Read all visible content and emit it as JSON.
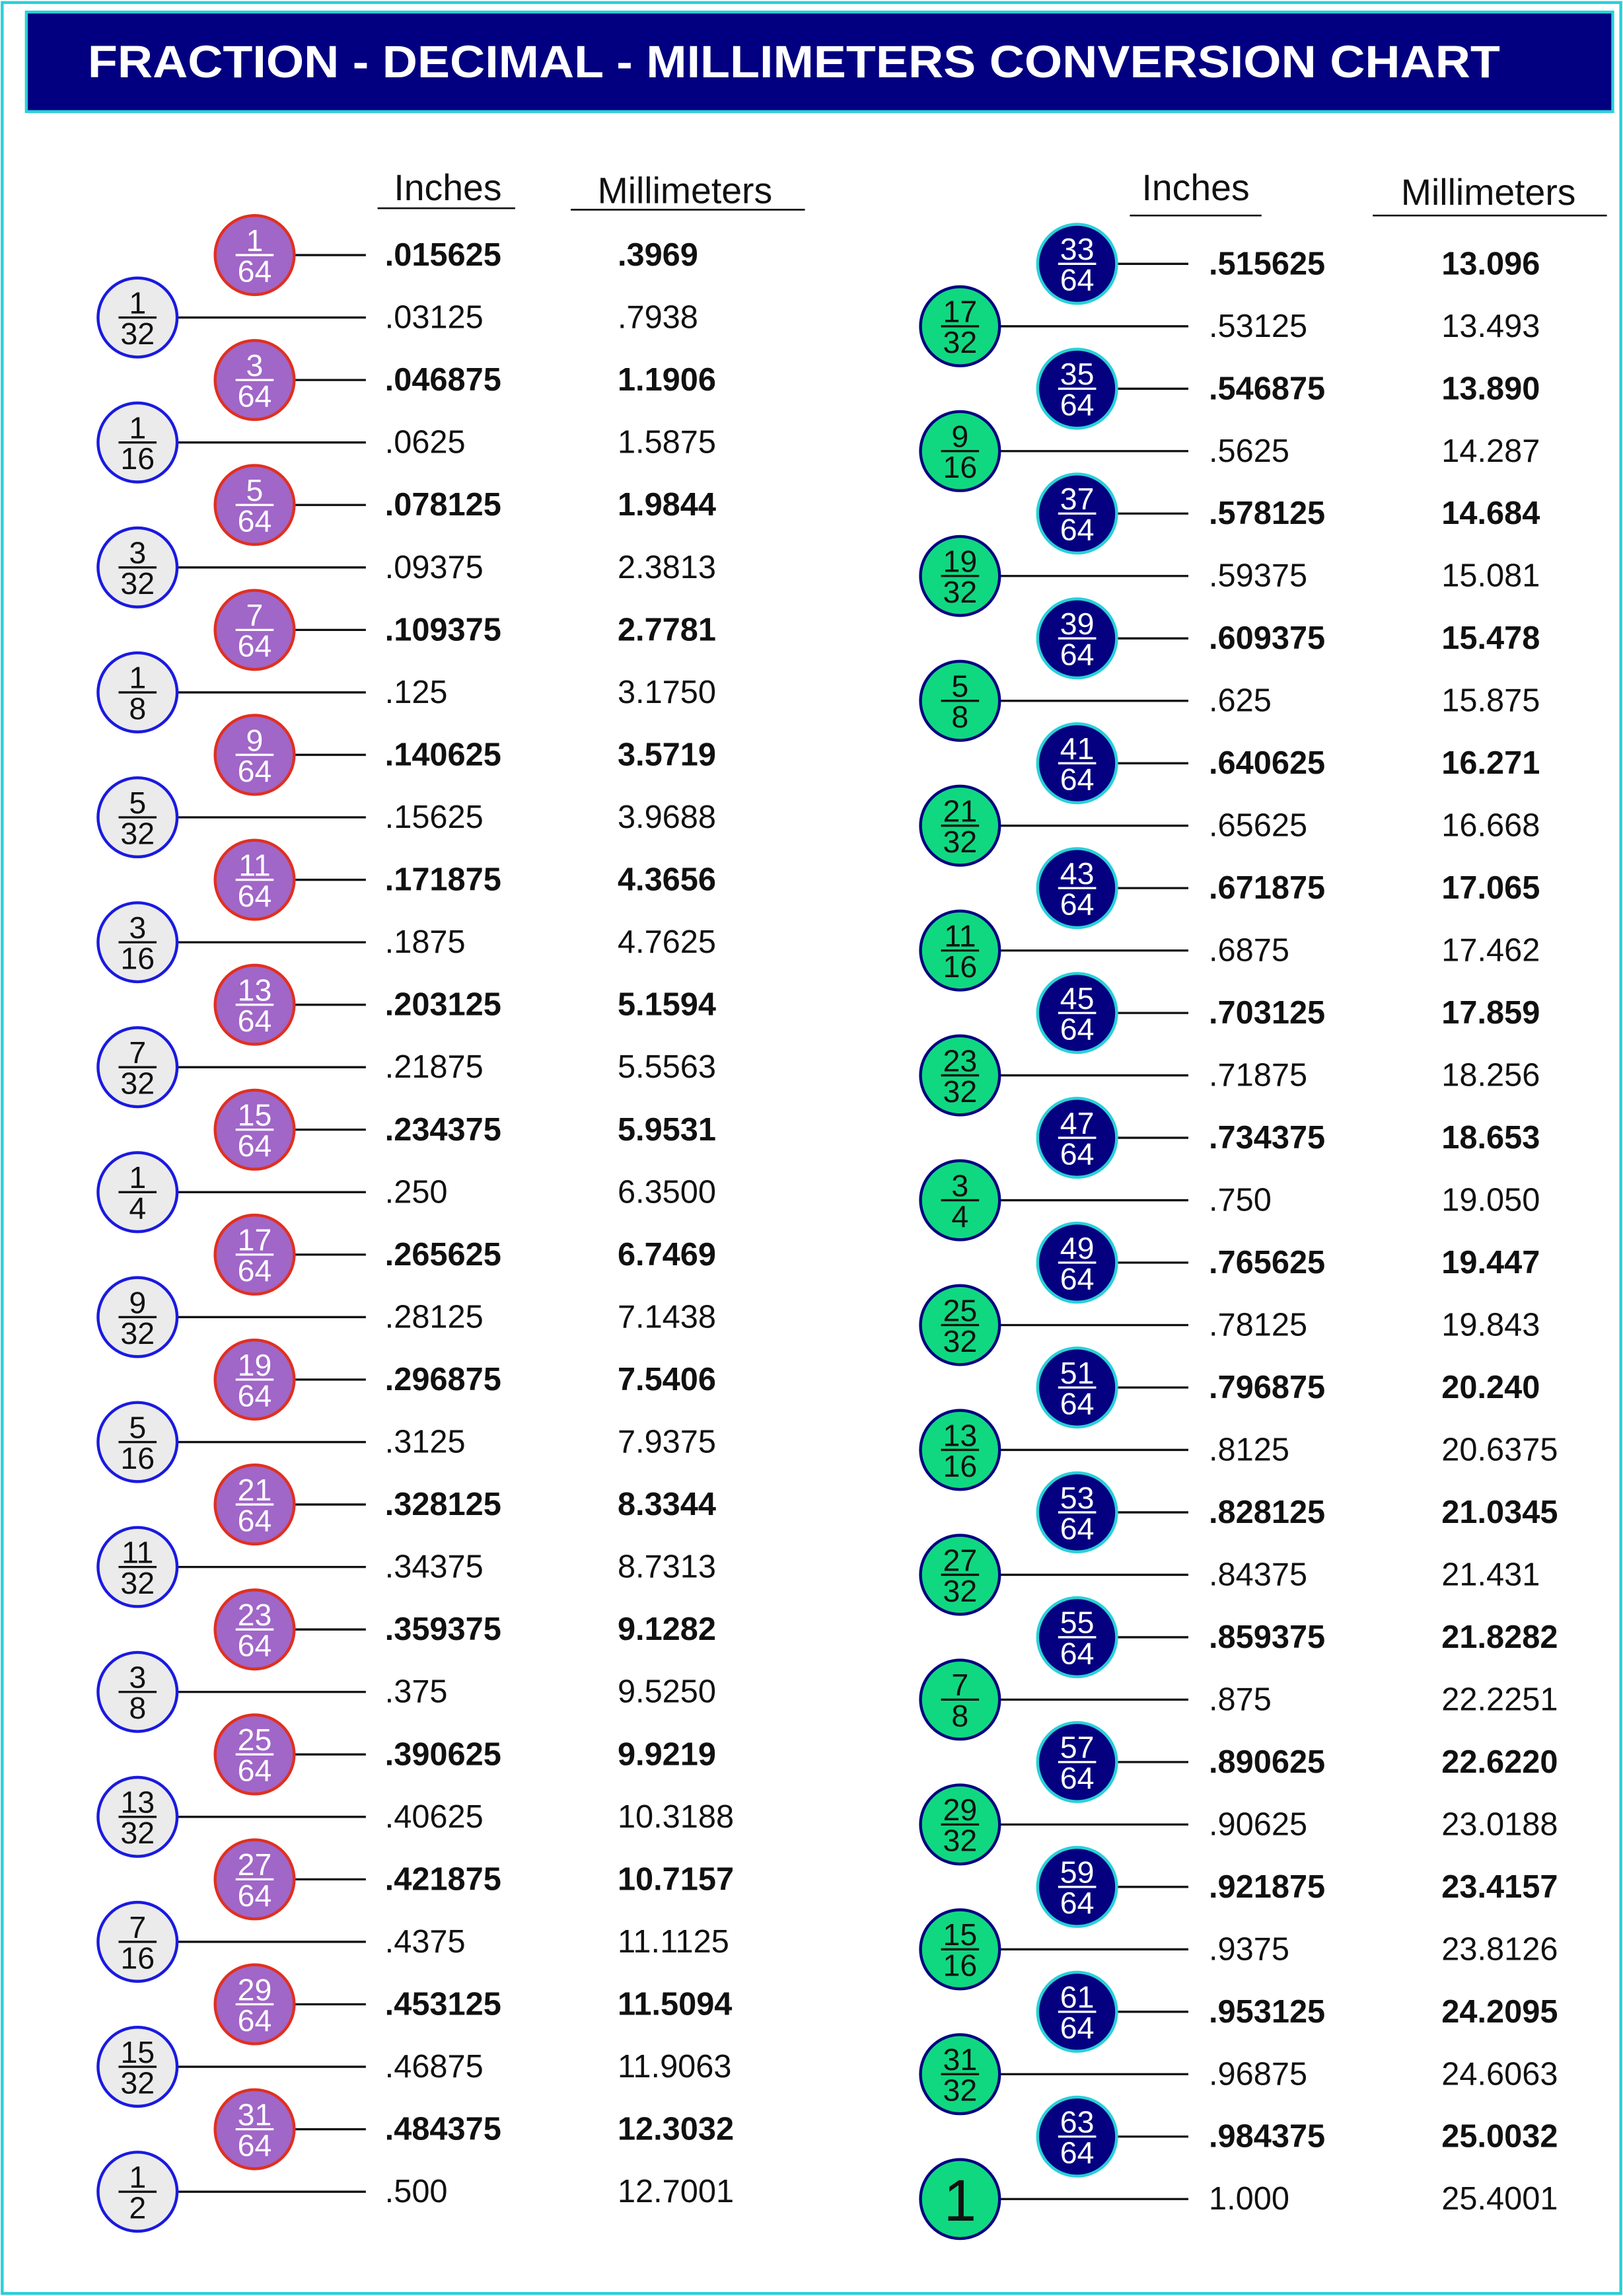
{
  "title": "FRACTION - DECIMAL - MILLIMETERS CONVERSION CHART",
  "panels": [
    {
      "headers": [
        "Inches",
        "Millimeters"
      ],
      "rows": [
        [
          "1",
          "64",
          ".015625",
          ".3969"
        ],
        [
          "1",
          "32",
          ".03125",
          ".7938"
        ],
        [
          "3",
          "64",
          ".046875",
          "1.1906"
        ],
        [
          "1",
          "16",
          ".0625",
          "1.5875"
        ],
        [
          "5",
          "64",
          ".078125",
          "1.9844"
        ],
        [
          "3",
          "32",
          ".09375",
          "2.3813"
        ],
        [
          "7",
          "64",
          ".109375",
          "2.7781"
        ],
        [
          "1",
          "8",
          ".125",
          "3.1750"
        ],
        [
          "9",
          "64",
          ".140625",
          "3.5719"
        ],
        [
          "5",
          "32",
          ".15625",
          "3.9688"
        ],
        [
          "11",
          "64",
          ".171875",
          "4.3656"
        ],
        [
          "3",
          "16",
          ".1875",
          "4.7625"
        ],
        [
          "13",
          "64",
          ".203125",
          "5.1594"
        ],
        [
          "7",
          "32",
          ".21875",
          "5.5563"
        ],
        [
          "15",
          "64",
          ".234375",
          "5.9531"
        ],
        [
          "1",
          "4",
          ".250",
          "6.3500"
        ],
        [
          "17",
          "64",
          ".265625",
          "6.7469"
        ],
        [
          "9",
          "32",
          ".28125",
          "7.1438"
        ],
        [
          "19",
          "64",
          ".296875",
          "7.5406"
        ],
        [
          "5",
          "16",
          ".3125",
          "7.9375"
        ],
        [
          "21",
          "64",
          ".328125",
          "8.3344"
        ],
        [
          "11",
          "32",
          ".34375",
          "8.7313"
        ],
        [
          "23",
          "64",
          ".359375",
          "9.1282"
        ],
        [
          "3",
          "8",
          ".375",
          "9.5250"
        ],
        [
          "25",
          "64",
          ".390625",
          "9.9219"
        ],
        [
          "13",
          "32",
          ".40625",
          "10.3188"
        ],
        [
          "27",
          "64",
          ".421875",
          "10.7157"
        ],
        [
          "7",
          "16",
          ".4375",
          "11.1125"
        ],
        [
          "29",
          "64",
          ".453125",
          "11.5094"
        ],
        [
          "15",
          "32",
          ".46875",
          "11.9063"
        ],
        [
          "31",
          "64",
          ".484375",
          "12.3032"
        ],
        [
          "1",
          "2",
          ".500",
          "12.7001"
        ]
      ]
    },
    {
      "headers": [
        "Inches",
        "Millimeters"
      ],
      "rows": [
        [
          "33",
          "64",
          ".515625",
          "13.096"
        ],
        [
          "17",
          "32",
          ".53125",
          "13.493"
        ],
        [
          "35",
          "64",
          ".546875",
          "13.890"
        ],
        [
          "9",
          "16",
          ".5625",
          "14.287"
        ],
        [
          "37",
          "64",
          ".578125",
          "14.684"
        ],
        [
          "19",
          "32",
          ".59375",
          "15.081"
        ],
        [
          "39",
          "64",
          ".609375",
          "15.478"
        ],
        [
          "5",
          "8",
          ".625",
          "15.875"
        ],
        [
          "41",
          "64",
          ".640625",
          "16.271"
        ],
        [
          "21",
          "32",
          ".65625",
          "16.668"
        ],
        [
          "43",
          "64",
          ".671875",
          "17.065"
        ],
        [
          "11",
          "16",
          ".6875",
          "17.462"
        ],
        [
          "45",
          "64",
          ".703125",
          "17.859"
        ],
        [
          "23",
          "32",
          ".71875",
          "18.256"
        ],
        [
          "47",
          "64",
          ".734375",
          "18.653"
        ],
        [
          "3",
          "4",
          ".750",
          "19.050"
        ],
        [
          "49",
          "64",
          ".765625",
          "19.447"
        ],
        [
          "25",
          "32",
          ".78125",
          "19.843"
        ],
        [
          "51",
          "64",
          ".796875",
          "20.240"
        ],
        [
          "13",
          "16",
          ".8125",
          "20.6375"
        ],
        [
          "53",
          "64",
          ".828125",
          "21.0345"
        ],
        [
          "27",
          "32",
          ".84375",
          "21.431"
        ],
        [
          "55",
          "64",
          ".859375",
          "21.8282"
        ],
        [
          "7",
          "8",
          ".875",
          "22.2251"
        ],
        [
          "57",
          "64",
          ".890625",
          "22.6220"
        ],
        [
          "29",
          "32",
          ".90625",
          "23.0188"
        ],
        [
          "59",
          "64",
          ".921875",
          "23.4157"
        ],
        [
          "15",
          "16",
          ".9375",
          "23.8126"
        ],
        [
          "61",
          "64",
          ".953125",
          "24.2095"
        ],
        [
          "31",
          "32",
          ".96875",
          "24.6063"
        ],
        [
          "63",
          "64",
          ".984375",
          "25.0032"
        ],
        [
          "1",
          "1.000",
          "25.4001"
        ]
      ]
    }
  ]
}
